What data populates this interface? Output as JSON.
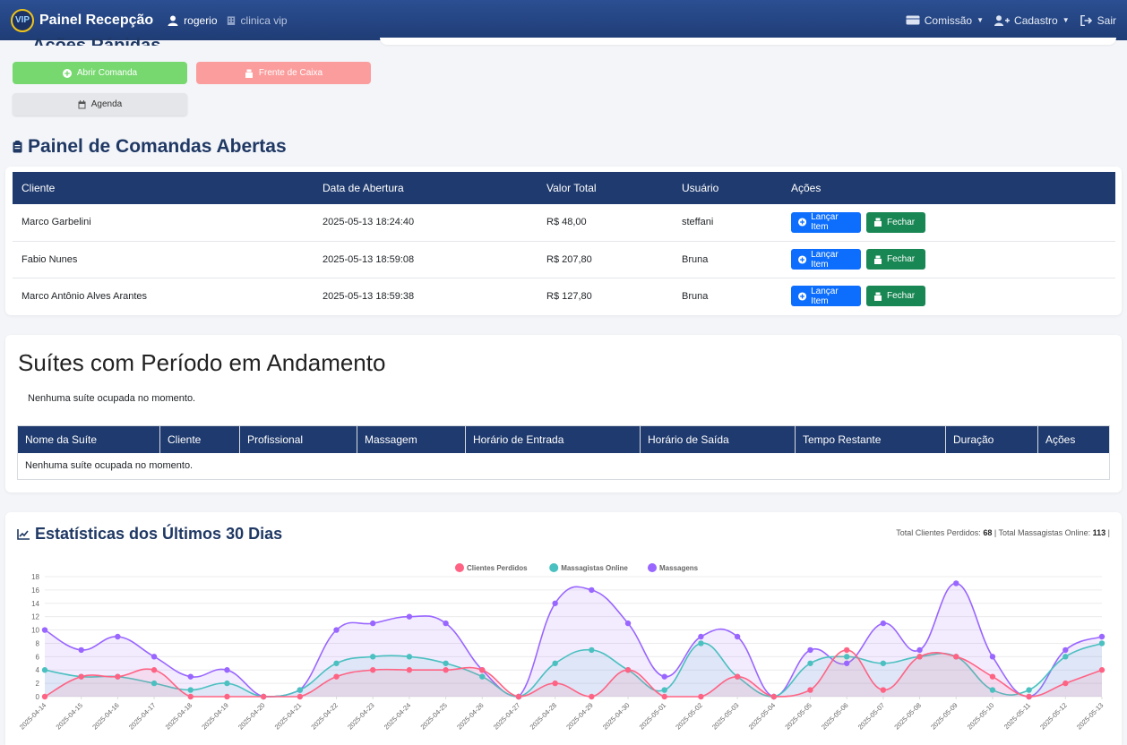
{
  "navbar": {
    "logo_text": "VIP",
    "brand": "Painel Recepção",
    "user": "rogerio",
    "clinic": "clinica vip",
    "menu": [
      {
        "label": "Comissão",
        "icon": "wallet-icon"
      },
      {
        "label": "Cadastro",
        "icon": "user-plus-icon"
      },
      {
        "label": "Sair",
        "icon": "sign-out-icon"
      }
    ]
  },
  "quick_actions": {
    "title": "Ações Rápidas",
    "open_order": "Abrir Comanda",
    "cashier": "Frente de Caixa",
    "schedule": "Agenda"
  },
  "orders": {
    "title": "Painel de Comandas Abertas",
    "columns": [
      "Cliente",
      "Data de Abertura",
      "Valor Total",
      "Usuário",
      "Ações"
    ],
    "rows": [
      {
        "client": "Marco Garbelini",
        "opened": "2025-05-13 18:24:40",
        "total": "R$ 48,00",
        "user": "steffani"
      },
      {
        "client": "Fabio Nunes",
        "opened": "2025-05-13 18:59:08",
        "total": "R$ 207,80",
        "user": "Bruna"
      },
      {
        "client": "Marco Antônio Alves Arantes",
        "opened": "2025-05-13 18:59:38",
        "total": "R$ 127,80",
        "user": "Bruna"
      }
    ],
    "launch_label": "Lançar Item",
    "close_label": "Fechar"
  },
  "suites": {
    "title": "Suítes com Período em Andamento",
    "empty_message": "Nenhuma suíte ocupada no momento.",
    "columns": [
      "Nome da Suíte",
      "Cliente",
      "Profissional",
      "Massagem",
      "Horário de Entrada",
      "Horário de Saída",
      "Tempo Restante",
      "Duração",
      "Ações"
    ],
    "table_empty": "Nenhuma suíte ocupada no momento."
  },
  "stats": {
    "title": "Estatísticas dos Últimos 30 Dias",
    "lost_label": "Total Clientes Perdidos:",
    "lost_value": "68",
    "online_label": "Total Massagistas Online:",
    "online_value": "113",
    "separator": "|"
  },
  "chart_data": {
    "type": "area",
    "x": [
      "2025-04-14",
      "2025-04-15",
      "2025-04-16",
      "2025-04-17",
      "2025-04-18",
      "2025-04-19",
      "2025-04-20",
      "2025-04-21",
      "2025-04-22",
      "2025-04-23",
      "2025-04-24",
      "2025-04-25",
      "2025-04-26",
      "2025-04-27",
      "2025-04-28",
      "2025-04-29",
      "2025-04-30",
      "2025-05-01",
      "2025-05-02",
      "2025-05-03",
      "2025-05-04",
      "2025-05-05",
      "2025-05-06",
      "2025-05-07",
      "2025-05-08",
      "2025-05-09",
      "2025-05-10",
      "2025-05-11",
      "2025-05-12",
      "2025-05-13"
    ],
    "yticks": [
      0,
      2,
      4,
      6,
      8,
      10,
      12,
      14,
      16,
      18
    ],
    "ylim": [
      0,
      18
    ],
    "legend_position": "top",
    "grid": true,
    "series": [
      {
        "name": "Clientes Perdidos",
        "color": "#ff6384",
        "fill": "rgba(255,99,132,0.12)",
        "values": [
          0,
          3,
          3,
          4,
          0,
          0,
          0,
          0,
          3,
          4,
          4,
          4,
          4,
          0,
          2,
          0,
          4,
          0,
          0,
          3,
          0,
          1,
          7,
          1,
          6,
          6,
          3,
          0,
          2,
          4
        ]
      },
      {
        "name": "Massagistas Online",
        "color": "#4bc0c0",
        "fill": "rgba(75,192,192,0.12)",
        "values": [
          4,
          3,
          3,
          2,
          1,
          2,
          0,
          1,
          5,
          6,
          6,
          5,
          3,
          0,
          5,
          7,
          4,
          1,
          8,
          3,
          0,
          5,
          6,
          5,
          6,
          6,
          1,
          1,
          6,
          8
        ]
      },
      {
        "name": "Massagens",
        "color": "#9966ff",
        "fill": "rgba(153,102,255,0.12)",
        "values": [
          10,
          7,
          9,
          6,
          3,
          4,
          0,
          1,
          10,
          11,
          12,
          11,
          4,
          0,
          14,
          16,
          11,
          3,
          9,
          9,
          0,
          7,
          5,
          11,
          7,
          17,
          6,
          0,
          7,
          9
        ]
      }
    ]
  }
}
